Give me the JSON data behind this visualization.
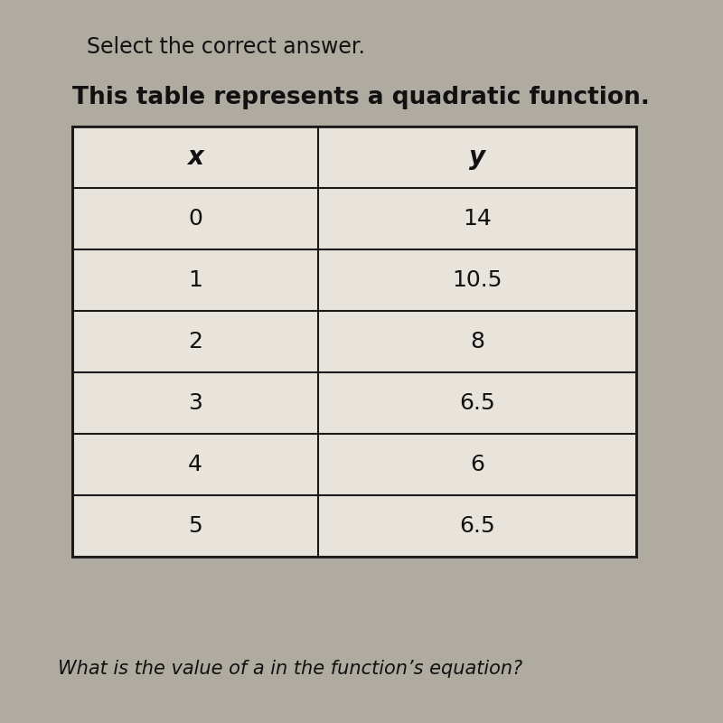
{
  "title1": "Select the correct answer.",
  "title2": "This table represents a quadratic function.",
  "question": "What is the value of a in the function’s equation?",
  "headers": [
    "x",
    "y"
  ],
  "rows": [
    [
      "0",
      "14"
    ],
    [
      "1",
      "10.5"
    ],
    [
      "2",
      "8"
    ],
    [
      "3",
      "6.5"
    ],
    [
      "4",
      "6"
    ],
    [
      "5",
      "6.5"
    ]
  ],
  "bg_color": "#b0aba0",
  "table_bg": "#e8e4dc",
  "border_color": "#1a1a1a",
  "text_color": "#111111",
  "title1_fontsize": 17,
  "title2_fontsize": 19,
  "question_fontsize": 15,
  "cell_fontsize": 18,
  "header_fontsize": 20
}
